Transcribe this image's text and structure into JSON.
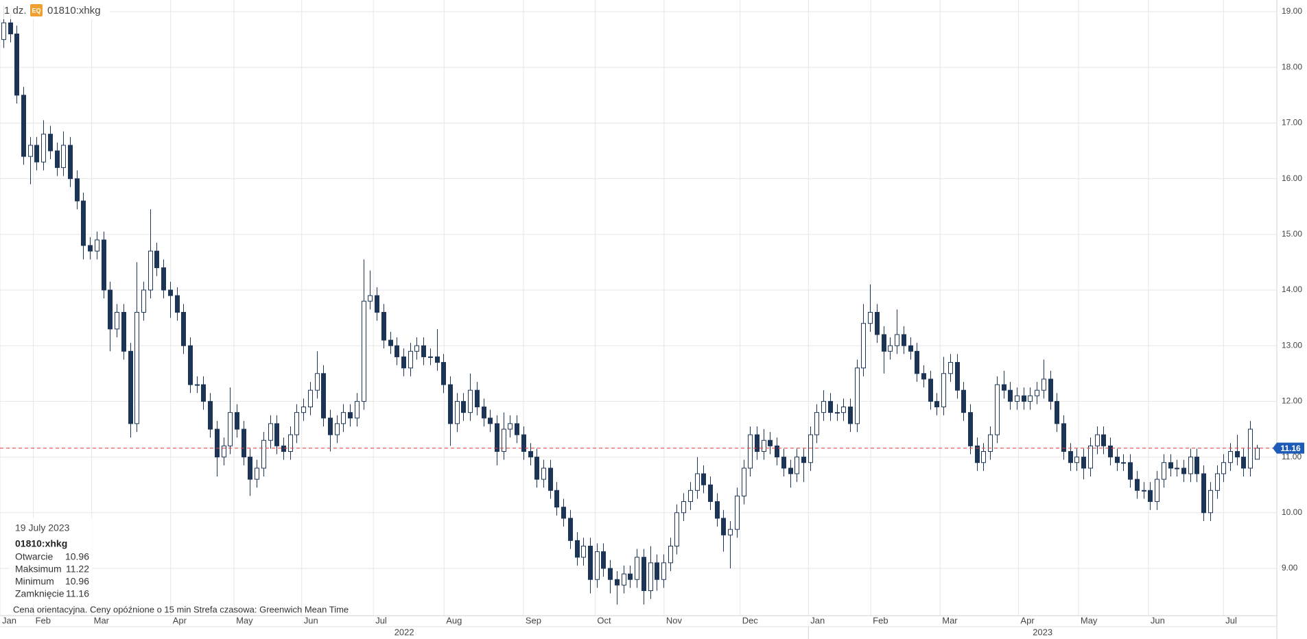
{
  "header": {
    "interval": "1 dz.",
    "badge": "EQ",
    "symbol": "01810:xhkg"
  },
  "chart_data": {
    "type": "candlestick",
    "open": [
      18.5,
      18.8,
      18.6,
      17.5,
      16.4,
      16.6,
      16.3,
      16.8,
      16.5,
      16.2,
      16.6,
      16.0,
      15.6,
      14.8,
      14.7,
      14.9,
      14.0,
      13.3,
      13.6,
      12.9,
      11.6,
      13.6,
      14.0,
      14.7,
      14.4,
      14.0,
      13.9,
      13.6,
      13.0,
      12.3,
      12.3,
      12.0,
      11.5,
      11.0,
      11.2,
      11.8,
      11.5,
      11.0,
      10.6,
      10.8,
      11.3,
      11.6,
      11.2,
      11.1,
      11.4,
      11.8,
      11.9,
      12.2,
      12.5,
      11.7,
      11.4,
      11.6,
      11.8,
      11.7,
      12.0,
      13.8,
      13.9,
      13.6,
      13.1,
      13.0,
      12.8,
      12.6,
      12.9,
      13.0,
      12.8,
      12.8,
      12.7,
      12.3,
      11.6,
      12.0,
      11.8,
      12.2,
      11.9,
      11.7,
      11.6,
      11.1,
      11.5,
      11.6,
      11.4,
      11.1,
      11.0,
      10.6,
      10.8,
      10.4,
      10.1,
      9.9,
      9.5,
      9.2,
      9.4,
      8.8,
      9.3,
      9.0,
      8.8,
      8.7,
      8.9,
      8.8,
      9.2,
      8.6,
      9.1,
      8.8,
      9.1,
      9.4,
      10.0,
      10.2,
      10.4,
      10.7,
      10.5,
      10.2,
      9.9,
      9.6,
      9.7,
      10.3,
      10.8,
      11.4,
      11.1,
      11.3,
      11.2,
      11.0,
      10.8,
      10.7,
      11.0,
      10.9,
      11.4,
      11.8,
      12.0,
      11.8,
      11.8,
      11.9,
      11.6,
      12.6,
      13.4,
      13.6,
      13.2,
      12.9,
      13.0,
      13.2,
      13.0,
      12.9,
      12.5,
      12.4,
      12.0,
      11.9,
      12.5,
      12.7,
      12.2,
      11.8,
      11.2,
      10.9,
      11.1,
      11.4,
      12.3,
      12.2,
      12.0,
      12.1,
      12.0,
      12.1,
      12.2,
      12.4,
      12.0,
      11.6,
      11.1,
      10.9,
      11.0,
      10.8,
      11.2,
      11.4,
      11.2,
      11.0,
      10.9,
      10.9,
      10.6,
      10.4,
      10.4,
      10.2,
      10.6,
      10.9,
      10.8,
      10.8,
      10.7,
      11.0,
      10.7,
      10.0,
      10.4,
      10.7,
      10.9,
      11.1,
      11.0,
      10.8,
      10.96
    ],
    "high": [
      19.1,
      18.95,
      18.75,
      17.65,
      16.75,
      16.75,
      17.05,
      16.95,
      16.65,
      16.85,
      16.75,
      16.15,
      15.75,
      14.95,
      15.05,
      15.05,
      14.15,
      13.75,
      13.75,
      13.05,
      14.5,
      14.15,
      15.45,
      14.85,
      14.55,
      14.15,
      14.05,
      13.75,
      13.15,
      12.45,
      12.45,
      12.15,
      11.65,
      11.35,
      12.25,
      11.95,
      11.65,
      11.15,
      10.95,
      11.45,
      11.75,
      11.75,
      11.35,
      11.55,
      11.95,
      12.05,
      12.35,
      12.9,
      12.65,
      11.85,
      11.75,
      11.95,
      11.95,
      12.15,
      14.55,
      14.35,
      14.05,
      13.75,
      13.25,
      13.15,
      12.95,
      13.05,
      13.15,
      13.15,
      12.95,
      13.3,
      12.85,
      12.45,
      12.15,
      12.15,
      12.5,
      12.35,
      12.05,
      11.85,
      11.75,
      11.8,
      11.75,
      11.75,
      11.55,
      11.25,
      11.15,
      10.95,
      10.95,
      10.55,
      10.25,
      10.05,
      9.65,
      9.55,
      9.55,
      9.45,
      9.45,
      9.15,
      8.95,
      9.05,
      9.05,
      9.35,
      9.35,
      9.4,
      9.25,
      9.25,
      9.55,
      10.15,
      10.35,
      10.55,
      11.0,
      10.85,
      10.65,
      10.35,
      10.05,
      9.85,
      10.45,
      10.95,
      11.55,
      11.55,
      11.5,
      11.45,
      11.35,
      11.15,
      10.95,
      11.15,
      11.15,
      11.55,
      11.95,
      12.2,
      12.15,
      11.95,
      12.05,
      12.05,
      12.75,
      13.75,
      14.1,
      13.75,
      13.35,
      13.15,
      13.65,
      13.35,
      13.15,
      13.05,
      12.65,
      12.55,
      12.15,
      12.8,
      12.85,
      12.85,
      12.35,
      11.95,
      11.35,
      11.25,
      11.55,
      12.45,
      12.55,
      12.35,
      12.25,
      12.25,
      12.25,
      12.35,
      12.75,
      12.55,
      12.15,
      11.75,
      11.25,
      11.15,
      11.15,
      11.35,
      11.55,
      11.55,
      11.35,
      11.15,
      11.05,
      11.05,
      10.75,
      10.55,
      10.55,
      10.75,
      11.05,
      11.05,
      10.95,
      10.95,
      11.15,
      11.15,
      10.85,
      10.55,
      10.85,
      11.05,
      11.25,
      11.4,
      11.15,
      11.65,
      11.22
    ],
    "low": [
      18.35,
      18.45,
      17.35,
      16.25,
      15.9,
      16.15,
      16.15,
      16.35,
      16.05,
      16.05,
      15.85,
      15.45,
      14.55,
      14.55,
      14.55,
      13.85,
      12.9,
      13.15,
      12.75,
      11.35,
      11.45,
      13.45,
      13.85,
      14.25,
      13.85,
      13.5,
      13.45,
      12.85,
      12.15,
      12.15,
      11.85,
      11.35,
      10.65,
      10.85,
      11.05,
      11.35,
      10.85,
      10.3,
      10.45,
      10.65,
      11.15,
      11.05,
      10.95,
      10.95,
      11.25,
      11.65,
      11.75,
      12.05,
      11.55,
      11.1,
      11.25,
      11.45,
      11.55,
      11.55,
      11.85,
      13.65,
      13.45,
      12.95,
      12.85,
      12.65,
      12.45,
      12.45,
      12.75,
      12.65,
      12.65,
      12.55,
      12.15,
      11.2,
      11.45,
      11.65,
      11.65,
      11.75,
      11.55,
      11.45,
      10.85,
      10.95,
      11.35,
      11.25,
      10.95,
      10.85,
      10.45,
      10.45,
      10.25,
      9.95,
      9.75,
      9.35,
      9.05,
      9.05,
      8.55,
      8.65,
      8.85,
      8.55,
      8.35,
      8.55,
      8.65,
      8.65,
      8.35,
      8.45,
      8.6,
      8.65,
      8.95,
      9.25,
      9.85,
      10.05,
      10.25,
      10.35,
      10.05,
      9.75,
      9.3,
      9.0,
      9.55,
      10.15,
      10.65,
      10.95,
      10.95,
      11.05,
      10.85,
      10.65,
      10.45,
      10.55,
      10.55,
      10.75,
      11.25,
      11.65,
      11.65,
      11.65,
      11.65,
      11.45,
      11.45,
      12.45,
      13.25,
      13.05,
      12.5,
      12.75,
      12.85,
      12.85,
      12.75,
      12.35,
      12.25,
      11.85,
      11.75,
      11.75,
      12.35,
      12.05,
      11.65,
      11.05,
      10.75,
      10.75,
      10.95,
      11.25,
      12.05,
      11.85,
      11.85,
      11.85,
      11.85,
      11.95,
      12.05,
      11.85,
      11.45,
      10.95,
      10.75,
      10.75,
      10.6,
      10.65,
      11.05,
      11.05,
      10.85,
      10.75,
      10.75,
      10.45,
      10.25,
      10.25,
      10.05,
      10.05,
      10.45,
      10.65,
      10.65,
      10.55,
      10.55,
      10.55,
      9.85,
      9.85,
      10.25,
      10.55,
      10.75,
      10.85,
      10.65,
      10.65,
      10.96
    ],
    "close": [
      18.8,
      18.6,
      17.5,
      16.4,
      16.6,
      16.3,
      16.8,
      16.5,
      16.2,
      16.6,
      16.0,
      15.6,
      14.8,
      14.7,
      14.9,
      14.0,
      13.3,
      13.6,
      12.9,
      11.6,
      13.6,
      14.0,
      14.7,
      14.4,
      14.0,
      13.9,
      13.6,
      13.0,
      12.3,
      12.3,
      12.0,
      11.5,
      11.0,
      11.2,
      11.8,
      11.5,
      11.0,
      10.6,
      10.8,
      11.3,
      11.6,
      11.2,
      11.1,
      11.4,
      11.8,
      11.9,
      12.2,
      12.5,
      11.7,
      11.4,
      11.6,
      11.8,
      11.7,
      12.0,
      13.8,
      13.9,
      13.6,
      13.1,
      13.0,
      12.8,
      12.6,
      12.9,
      13.0,
      12.8,
      12.8,
      12.7,
      12.3,
      11.6,
      12.0,
      11.8,
      12.2,
      11.9,
      11.7,
      11.6,
      11.1,
      11.5,
      11.6,
      11.4,
      11.1,
      11.0,
      10.6,
      10.8,
      10.4,
      10.1,
      9.9,
      9.5,
      9.2,
      9.4,
      8.8,
      9.3,
      9.0,
      8.8,
      8.7,
      8.9,
      8.8,
      9.2,
      8.6,
      9.1,
      8.8,
      9.1,
      9.4,
      10.0,
      10.2,
      10.4,
      10.7,
      10.5,
      10.2,
      9.9,
      9.6,
      9.7,
      10.3,
      10.8,
      11.4,
      11.1,
      11.3,
      11.2,
      11.0,
      10.8,
      10.7,
      11.0,
      10.9,
      11.4,
      11.8,
      12.0,
      11.8,
      11.8,
      11.9,
      11.6,
      12.6,
      13.4,
      13.6,
      13.2,
      12.9,
      13.0,
      13.2,
      13.0,
      12.9,
      12.5,
      12.4,
      12.0,
      11.9,
      12.5,
      12.7,
      12.2,
      11.8,
      11.2,
      10.9,
      11.1,
      11.4,
      12.3,
      12.2,
      12.0,
      12.1,
      12.0,
      12.1,
      12.2,
      12.4,
      12.0,
      11.6,
      11.1,
      10.9,
      11.0,
      10.8,
      11.2,
      11.4,
      11.2,
      11.0,
      10.9,
      10.9,
      10.6,
      10.4,
      10.4,
      10.2,
      10.6,
      10.9,
      10.8,
      10.8,
      10.7,
      11.0,
      10.7,
      10.0,
      10.4,
      10.7,
      10.9,
      11.1,
      11.0,
      10.8,
      11.5,
      11.16
    ],
    "up_color": "#ffffff",
    "down_color": "#1c3557",
    "grid": true,
    "ylim": [
      8.15,
      19.21
    ],
    "yticks": [
      {
        "value": 9,
        "label": "9.00"
      },
      {
        "value": 10,
        "label": "10.00"
      },
      {
        "value": 11,
        "label": "11.00"
      },
      {
        "value": 12,
        "label": "12.00"
      },
      {
        "value": 13,
        "label": "13.00"
      },
      {
        "value": 14,
        "label": "14.00"
      },
      {
        "value": 15,
        "label": "15.00"
      },
      {
        "value": 16,
        "label": "16.00"
      },
      {
        "value": 17,
        "label": "17.00"
      },
      {
        "value": 18,
        "label": "18.00"
      },
      {
        "value": 19,
        "label": "19.00"
      }
    ],
    "xlim": [
      -0.5,
      191
    ],
    "xticks": [
      {
        "value": -0.5,
        "label": "Jan"
      },
      {
        "value": 4.5,
        "label": "Feb"
      },
      {
        "value": 13.25,
        "label": "Mar"
      },
      {
        "value": 25.1,
        "label": "Apr"
      },
      {
        "value": 34.6,
        "label": "May"
      },
      {
        "value": 44.75,
        "label": "Jun"
      },
      {
        "value": 55.5,
        "label": "Jul"
      },
      {
        "value": 66.1,
        "label": "Aug"
      },
      {
        "value": 78,
        "label": "Sep"
      },
      {
        "value": 88.75,
        "label": "Oct"
      },
      {
        "value": 99.1,
        "label": "Nov"
      },
      {
        "value": 110.5,
        "label": "Dec"
      },
      {
        "value": 120.75,
        "label": "Jan"
      },
      {
        "value": 130.1,
        "label": "Feb"
      },
      {
        "value": 140.5,
        "label": "Mar"
      },
      {
        "value": 152.25,
        "label": "Apr"
      },
      {
        "value": 161.25,
        "label": "May"
      },
      {
        "value": 171.75,
        "label": "Jun"
      },
      {
        "value": 183,
        "label": "Jul"
      }
    ],
    "years": [
      {
        "value": -0.5,
        "label": "2022"
      },
      {
        "value": 120.75,
        "label": "2023"
      }
    ],
    "last_price": 11.16,
    "last_price_color": "#e53935",
    "last_price_box_color": "#1e5bb8"
  },
  "tooltip": {
    "date": "19 July 2023",
    "symbol": "01810:xhkg",
    "rows": [
      {
        "label": "Otwarcie",
        "value": 10.96
      },
      {
        "label": "Maksimum",
        "value": 11.22
      },
      {
        "label": "Minimum",
        "value": 10.96
      },
      {
        "label": "Zamknięcie",
        "value": 11.16
      }
    ]
  },
  "footer": {
    "note": "Cena orientacyjna. Ceny opóźnione o 15 min",
    "timezone": "Strefa czasowa: Greenwich Mean Time"
  }
}
